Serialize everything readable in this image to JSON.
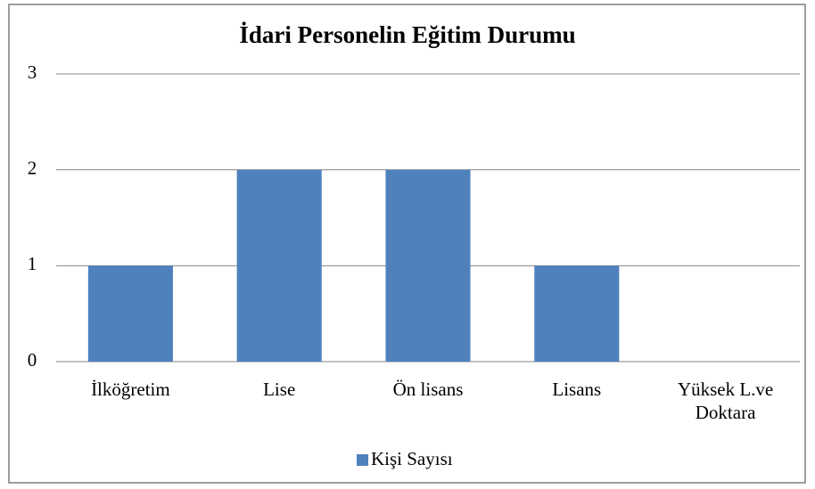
{
  "chart_data": {
    "type": "bar",
    "title": "İdari Personelin Eğitim Durumu",
    "categories": [
      "İlköğretim",
      "Lise",
      "Ön lisans",
      "Lisans",
      "Yüksek L.ve Doktara"
    ],
    "series": [
      {
        "name": "Kişi Sayısı",
        "color": "#4f81bd",
        "values": [
          1,
          2,
          2,
          1,
          0
        ]
      }
    ],
    "ylim": [
      0,
      3
    ],
    "yticks": [
      0,
      1,
      2,
      3
    ],
    "grid": true,
    "legend": "bottom"
  }
}
